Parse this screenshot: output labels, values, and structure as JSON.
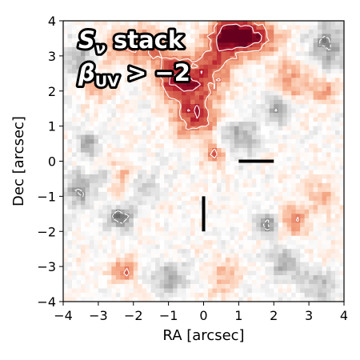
{
  "chart_data": {
    "type": "heatmap",
    "title": "",
    "xlabel": "RA [arcsec]",
    "ylabel": "Dec [arcsec]",
    "xlim": [
      -4,
      4
    ],
    "ylim": [
      -4,
      4
    ],
    "xticks": [
      -4,
      -3,
      -2,
      -1,
      0,
      1,
      2,
      3,
      4
    ],
    "yticks": [
      -4,
      -3,
      -2,
      -1,
      0,
      1,
      2,
      3,
      4
    ],
    "grid": false,
    "colormap": "RdGy_r",
    "color_range": [
      -3.5,
      3.5
    ],
    "colors": {
      "high": "#67001f",
      "mid": "#ffffff",
      "low": "#1a1a1a",
      "positive_contour": "#ffffff",
      "negative_contour": "#ffffff",
      "marker": "#000000"
    },
    "annotation": {
      "line1_main": "S",
      "line1_sub": "ν",
      "line1_rest": " stack",
      "line2_main": "β",
      "line2_sub": "UV",
      "line2_rest": " > −2"
    },
    "markers": [
      {
        "type": "horizontal-bar",
        "x": [
          1.0,
          2.0
        ],
        "y": 0.0
      },
      {
        "type": "vertical-bar",
        "x": 0.0,
        "y": [
          -2.0,
          -1.0
        ]
      }
    ],
    "positive_regions": [
      {
        "x": 0.8,
        "y": 3.6,
        "amp": 3.4,
        "sx": 0.45,
        "sy": 0.35
      },
      {
        "x": 1.5,
        "y": 3.5,
        "amp": 2.2,
        "sx": 0.5,
        "sy": 0.35
      },
      {
        "x": 0.3,
        "y": 2.7,
        "amp": 2.0,
        "sx": 0.4,
        "sy": 0.45
      },
      {
        "x": -0.5,
        "y": 2.1,
        "amp": 2.2,
        "sx": 0.5,
        "sy": 0.4
      },
      {
        "x": -0.2,
        "y": 1.2,
        "amp": 2.4,
        "sx": 0.45,
        "sy": 0.4
      },
      {
        "x": -0.8,
        "y": 2.6,
        "amp": 1.9,
        "sx": 0.4,
        "sy": 0.4
      },
      {
        "x": -1.6,
        "y": 3.3,
        "amp": 1.7,
        "sx": 0.4,
        "sy": 0.35
      },
      {
        "x": -2.4,
        "y": 3.3,
        "amp": 1.5,
        "sx": 0.35,
        "sy": 0.35
      },
      {
        "x": -3.0,
        "y": 2.2,
        "amp": 1.4,
        "sx": 0.35,
        "sy": 0.3
      },
      {
        "x": 0.3,
        "y": 0.2,
        "amp": 2.1,
        "sx": 0.22,
        "sy": 0.22
      },
      {
        "x": 2.5,
        "y": 2.3,
        "amp": 1.6,
        "sx": 0.4,
        "sy": 0.35
      },
      {
        "x": 3.5,
        "y": 2.0,
        "amp": 1.3,
        "sx": 0.3,
        "sy": 0.3
      },
      {
        "x": 2.6,
        "y": -1.7,
        "amp": 1.9,
        "sx": 0.3,
        "sy": 0.3
      },
      {
        "x": -2.3,
        "y": -3.1,
        "amp": 1.9,
        "sx": 0.25,
        "sy": 0.25
      },
      {
        "x": -2.6,
        "y": -0.4,
        "amp": 1.5,
        "sx": 0.4,
        "sy": 0.35
      },
      {
        "x": 0.6,
        "y": -3.3,
        "amp": 1.2,
        "sx": 0.35,
        "sy": 0.3
      },
      {
        "x": 3.4,
        "y": -1.0,
        "amp": 1.2,
        "sx": 0.3,
        "sy": 0.35
      }
    ],
    "negative_regions": [
      {
        "x": -2.4,
        "y": -1.6,
        "amp": -2.5,
        "sx": 0.25,
        "sy": 0.25
      },
      {
        "x": -2.8,
        "y": -0.4,
        "amp": -2.3,
        "sx": 0.22,
        "sy": 0.25
      },
      {
        "x": -3.3,
        "y": 0.5,
        "amp": -2.0,
        "sx": 0.22,
        "sy": 0.22
      },
      {
        "x": -3.5,
        "y": -0.8,
        "amp": -1.8,
        "sx": 0.35,
        "sy": 0.4
      },
      {
        "x": 1.8,
        "y": -1.8,
        "amp": -2.3,
        "sx": 0.22,
        "sy": 0.22
      },
      {
        "x": 2.1,
        "y": 1.5,
        "amp": -1.9,
        "sx": 0.25,
        "sy": 0.3
      },
      {
        "x": 1.0,
        "y": 0.7,
        "amp": -1.6,
        "sx": 0.4,
        "sy": 0.35
      },
      {
        "x": -3.5,
        "y": 2.8,
        "amp": -1.6,
        "sx": 0.3,
        "sy": 0.4
      },
      {
        "x": 3.6,
        "y": 3.3,
        "amp": -1.9,
        "sx": 0.4,
        "sy": 0.45
      },
      {
        "x": 2.3,
        "y": -2.9,
        "amp": -1.5,
        "sx": 0.3,
        "sy": 0.3
      },
      {
        "x": -1.0,
        "y": -3.3,
        "amp": -1.5,
        "sx": 0.4,
        "sy": 0.3
      },
      {
        "x": 3.2,
        "y": -3.5,
        "amp": -1.4,
        "sx": 0.35,
        "sy": 0.3
      },
      {
        "x": -1.7,
        "y": -0.8,
        "amp": -1.3,
        "sx": 0.3,
        "sy": 0.3
      }
    ]
  }
}
